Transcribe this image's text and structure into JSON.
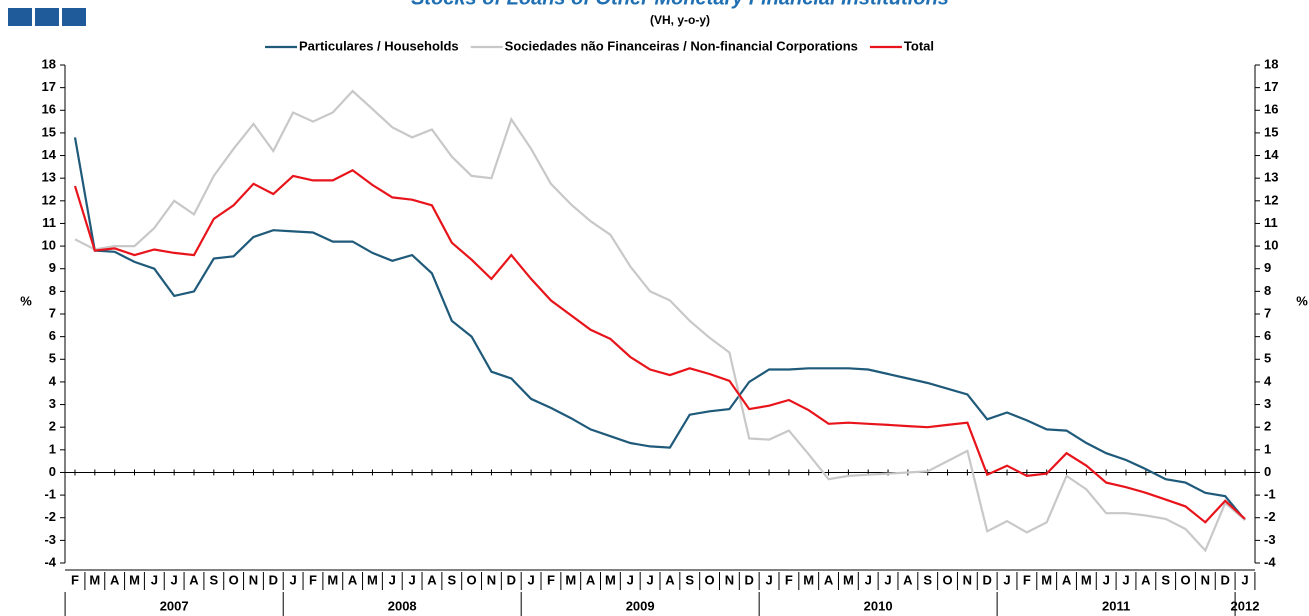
{
  "chart_data": {
    "type": "line",
    "title": "Stocks of Loans of Other Monetary Financial Institutions",
    "subtitle": "(VH, y-o-y)",
    "y_label": "%",
    "y2_label": "%",
    "categories": [
      "F",
      "M",
      "A",
      "M",
      "J",
      "J",
      "A",
      "S",
      "O",
      "N",
      "D",
      "J",
      "F",
      "M",
      "A",
      "M",
      "J",
      "J",
      "A",
      "S",
      "O",
      "N",
      "D",
      "J",
      "F",
      "M",
      "A",
      "M",
      "J",
      "J",
      "A",
      "S",
      "O",
      "N",
      "D",
      "J",
      "F",
      "M",
      "A",
      "M",
      "J",
      "J",
      "A",
      "S",
      "O",
      "N",
      "D",
      "J",
      "F",
      "M",
      "A",
      "M",
      "J",
      "J",
      "A",
      "S",
      "O",
      "N",
      "D",
      "J"
    ],
    "years": [
      "2007",
      "2008",
      "2009",
      "2010",
      "2011",
      "2012"
    ],
    "series": [
      {
        "name": "Particulares / Households",
        "color": "#1f5a7a",
        "values": [
          14.8,
          9.8,
          9.75,
          9.3,
          9.0,
          7.8,
          8.0,
          9.45,
          9.55,
          10.4,
          10.7,
          10.65,
          10.6,
          10.2,
          10.2,
          9.7,
          9.35,
          9.6,
          8.8,
          6.7,
          6.0,
          4.45,
          4.15,
          3.25,
          2.85,
          2.4,
          1.9,
          1.6,
          1.3,
          1.15,
          1.1,
          2.55,
          2.7,
          2.8,
          4.0,
          4.55,
          4.55,
          4.6,
          4.6,
          4.6,
          4.55,
          4.35,
          4.15,
          3.95,
          3.7,
          3.45,
          2.35,
          2.65,
          2.3,
          1.9,
          1.85,
          1.3,
          0.85,
          0.55,
          0.15,
          -0.3,
          -0.45,
          -0.9,
          -1.05,
          -2.1
        ]
      },
      {
        "name": "Sociedades não Financeiras / Non-financial Corporations",
        "color": "#c8c8c8",
        "values": [
          10.3,
          9.85,
          10.0,
          10.0,
          10.8,
          12.0,
          11.4,
          13.1,
          14.3,
          15.4,
          14.2,
          15.9,
          15.5,
          15.9,
          16.85,
          16.05,
          15.25,
          14.8,
          15.15,
          13.95,
          13.1,
          13.0,
          15.6,
          14.3,
          12.75,
          11.85,
          11.1,
          10.5,
          9.1,
          8.0,
          7.6,
          6.7,
          5.95,
          5.3,
          1.5,
          1.45,
          1.85,
          0.8,
          -0.3,
          -0.15,
          -0.1,
          -0.05,
          0.0,
          0.05,
          0.5,
          0.95,
          -2.6,
          -2.15,
          -2.65,
          -2.2,
          -0.15,
          -0.75,
          -1.8,
          -1.8,
          -1.9,
          -2.05,
          -2.5,
          -3.45,
          -1.35,
          -2.1
        ]
      },
      {
        "name": "Total",
        "color": "#e8141b",
        "values": [
          12.65,
          9.8,
          9.9,
          9.6,
          9.85,
          9.7,
          9.6,
          11.2,
          11.8,
          12.75,
          12.3,
          13.1,
          12.9,
          12.9,
          13.35,
          12.7,
          12.15,
          12.05,
          11.8,
          10.15,
          9.4,
          8.55,
          9.6,
          8.55,
          7.6,
          6.95,
          6.3,
          5.9,
          5.1,
          4.55,
          4.3,
          4.6,
          4.35,
          4.05,
          2.8,
          2.95,
          3.2,
          2.75,
          2.15,
          2.2,
          2.15,
          2.1,
          2.05,
          2.0,
          2.1,
          2.2,
          -0.1,
          0.3,
          -0.15,
          -0.05,
          0.85,
          0.3,
          -0.45,
          -0.65,
          -0.9,
          -1.2,
          -1.5,
          -2.2,
          -1.25,
          -2.05
        ]
      }
    ],
    "ylim": [
      -4,
      18
    ],
    "yticks": [
      -4,
      -3,
      -2,
      -1,
      0,
      1,
      2,
      3,
      4,
      5,
      6,
      7,
      8,
      9,
      10,
      11,
      12,
      13,
      14,
      15,
      16,
      17,
      18
    ],
    "y2lim": [
      -4,
      18
    ],
    "y2ticks": [
      -4,
      -3,
      -2,
      -1,
      0,
      1,
      2,
      3,
      4,
      5,
      6,
      7,
      8,
      9,
      10,
      11,
      12,
      13,
      14,
      15,
      16,
      17,
      18
    ],
    "legend": "top"
  }
}
